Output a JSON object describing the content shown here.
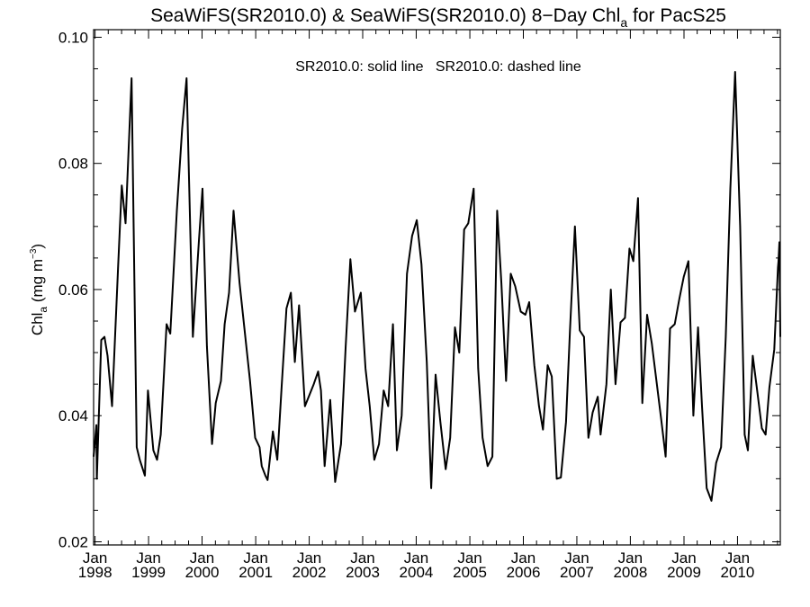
{
  "chart_data": {
    "type": "line",
    "title": "SeaWiFS(SR2010.0) & SeaWiFS(SR2010.0) 8−Day Chl",
    "title_sub": "a",
    "title_tail": " for PacS25",
    "annotation": "SR2010.0: solid line   SR2010.0: dashed line",
    "ylabel": "Chl",
    "ylabel_sub": "a",
    "ylabel_units": " (mg m",
    "ylabel_sup": "−3",
    "ylabel_close": ")",
    "ylim": [
      0.0195,
      0.1012
    ],
    "xlim": [
      "1997-12-22",
      "2010-10-20"
    ],
    "yticks": [
      0.02,
      0.04,
      0.06,
      0.08,
      0.1
    ],
    "ytick_labels": [
      "0.02",
      "0.04",
      "0.06",
      "0.08",
      "0.10"
    ],
    "xticks": [
      {
        "date": "1998-01-01",
        "month": "Jan",
        "year": "1998"
      },
      {
        "date": "1999-01-01",
        "month": "Jan",
        "year": "1999"
      },
      {
        "date": "2000-01-01",
        "month": "Jan",
        "year": "2000"
      },
      {
        "date": "2001-01-01",
        "month": "Jan",
        "year": "2001"
      },
      {
        "date": "2002-01-01",
        "month": "Jan",
        "year": "2002"
      },
      {
        "date": "2003-01-01",
        "month": "Jan",
        "year": "2003"
      },
      {
        "date": "2004-01-01",
        "month": "Jan",
        "year": "2004"
      },
      {
        "date": "2005-01-01",
        "month": "Jan",
        "year": "2005"
      },
      {
        "date": "2006-01-01",
        "month": "Jan",
        "year": "2006"
      },
      {
        "date": "2007-01-01",
        "month": "Jan",
        "year": "2007"
      },
      {
        "date": "2008-01-01",
        "month": "Jan",
        "year": "2008"
      },
      {
        "date": "2009-01-01",
        "month": "Jan",
        "year": "2009"
      },
      {
        "date": "2010-01-01",
        "month": "Jan",
        "year": "2010"
      }
    ],
    "grid": false,
    "series": [
      {
        "style": "solid",
        "color": "#000000",
        "points": [
          [
            "1997-12-22",
            0.0335
          ],
          [
            "1998-01-10",
            0.0385
          ],
          [
            "1998-01-13",
            0.03
          ],
          [
            "1998-02-12",
            0.052
          ],
          [
            "1998-03-06",
            0.0525
          ],
          [
            "1998-03-27",
            0.0495
          ],
          [
            "1998-04-27",
            0.0415
          ],
          [
            "1998-06-07",
            0.0635
          ],
          [
            "1998-07-02",
            0.0765
          ],
          [
            "1998-07-28",
            0.0705
          ],
          [
            "1998-09-07",
            0.0935
          ],
          [
            "1998-10-12",
            0.035
          ],
          [
            "1998-11-02",
            0.033
          ],
          [
            "1998-12-07",
            0.0305
          ],
          [
            "1998-12-28",
            0.044
          ],
          [
            "1999-02-03",
            0.0345
          ],
          [
            "1999-02-28",
            0.033
          ],
          [
            "1999-03-25",
            0.037
          ],
          [
            "1999-05-04",
            0.0545
          ],
          [
            "1999-05-29",
            0.053
          ],
          [
            "1999-07-13",
            0.0725
          ],
          [
            "1999-08-18",
            0.0855
          ],
          [
            "1999-09-17",
            0.0935
          ],
          [
            "1999-10-30",
            0.0525
          ],
          [
            "1999-12-10",
            0.0675
          ],
          [
            "2000-01-04",
            0.076
          ],
          [
            "2000-02-03",
            0.051
          ],
          [
            "2000-03-09",
            0.0355
          ],
          [
            "2000-04-03",
            0.042
          ],
          [
            "2000-05-09",
            0.0455
          ],
          [
            "2000-06-03",
            0.0545
          ],
          [
            "2000-07-03",
            0.0595
          ],
          [
            "2000-08-03",
            0.0725
          ],
          [
            "2000-09-13",
            0.061
          ],
          [
            "2000-11-23",
            0.0455
          ],
          [
            "2000-12-28",
            0.0365
          ],
          [
            "2001-01-27",
            0.035
          ],
          [
            "2001-02-11",
            0.032
          ],
          [
            "2001-03-08",
            0.0305
          ],
          [
            "2001-03-23",
            0.0298
          ],
          [
            "2001-04-28",
            0.0375
          ],
          [
            "2001-05-28",
            0.033
          ],
          [
            "2001-06-27",
            0.0445
          ],
          [
            "2001-07-30",
            0.057
          ],
          [
            "2001-08-29",
            0.0595
          ],
          [
            "2001-09-25",
            0.0485
          ],
          [
            "2001-10-24",
            0.0575
          ],
          [
            "2001-12-03",
            0.0415
          ],
          [
            "2002-02-01",
            0.045
          ],
          [
            "2002-03-03",
            0.047
          ],
          [
            "2002-03-22",
            0.044
          ],
          [
            "2002-04-16",
            0.032
          ],
          [
            "2002-05-24",
            0.0425
          ],
          [
            "2002-06-27",
            0.0295
          ],
          [
            "2002-08-06",
            0.0355
          ],
          [
            "2002-09-07",
            0.051
          ],
          [
            "2002-10-09",
            0.0648
          ],
          [
            "2002-11-09",
            0.0565
          ],
          [
            "2002-12-19",
            0.0595
          ],
          [
            "2003-01-20",
            0.0475
          ],
          [
            "2003-02-18",
            0.0415
          ],
          [
            "2003-03-21",
            0.033
          ],
          [
            "2003-04-22",
            0.0355
          ],
          [
            "2003-05-24",
            0.044
          ],
          [
            "2003-06-24",
            0.0415
          ],
          [
            "2003-07-26",
            0.0545
          ],
          [
            "2003-08-22",
            0.0345
          ],
          [
            "2003-09-24",
            0.04
          ],
          [
            "2003-10-30",
            0.0625
          ],
          [
            "2003-12-04",
            0.0685
          ],
          [
            "2004-01-05",
            0.071
          ],
          [
            "2004-02-06",
            0.064
          ],
          [
            "2004-03-13",
            0.0485
          ],
          [
            "2004-04-12",
            0.0285
          ],
          [
            "2004-05-12",
            0.0465
          ],
          [
            "2004-06-14",
            0.039
          ],
          [
            "2004-07-20",
            0.0315
          ],
          [
            "2004-08-20",
            0.0365
          ],
          [
            "2004-09-21",
            0.054
          ],
          [
            "2004-10-21",
            0.05
          ],
          [
            "2004-11-23",
            0.0695
          ],
          [
            "2004-12-21",
            0.0705
          ],
          [
            "2005-01-27",
            0.076
          ],
          [
            "2005-02-27",
            0.0475
          ],
          [
            "2005-03-29",
            0.0365
          ],
          [
            "2005-05-02",
            0.032
          ],
          [
            "2005-06-04",
            0.0335
          ],
          [
            "2005-07-06",
            0.0725
          ],
          [
            "2005-08-04",
            0.061
          ],
          [
            "2005-09-05",
            0.0455
          ],
          [
            "2005-10-07",
            0.0625
          ],
          [
            "2005-11-07",
            0.0605
          ],
          [
            "2005-12-14",
            0.0565
          ],
          [
            "2006-01-15",
            0.056
          ],
          [
            "2006-02-10",
            0.058
          ],
          [
            "2006-03-17",
            0.048
          ],
          [
            "2006-04-18",
            0.0415
          ],
          [
            "2006-05-15",
            0.0378
          ],
          [
            "2006-06-16",
            0.048
          ],
          [
            "2006-07-14",
            0.0462
          ],
          [
            "2006-08-17",
            0.03
          ],
          [
            "2006-09-14",
            0.0302
          ],
          [
            "2006-10-19",
            0.039
          ],
          [
            "2006-11-15",
            0.0535
          ],
          [
            "2006-12-19",
            0.07
          ],
          [
            "2007-01-21",
            0.0535
          ],
          [
            "2007-02-19",
            0.0525
          ],
          [
            "2007-03-21",
            0.0365
          ],
          [
            "2007-04-19",
            0.0405
          ],
          [
            "2007-05-24",
            0.043
          ],
          [
            "2007-06-12",
            0.037
          ],
          [
            "2007-07-22",
            0.045
          ],
          [
            "2007-08-21",
            0.06
          ],
          [
            "2007-09-22",
            0.045
          ],
          [
            "2007-10-26",
            0.0548
          ],
          [
            "2007-11-25",
            0.0555
          ],
          [
            "2007-12-26",
            0.0665
          ],
          [
            "2008-01-21",
            0.0645
          ],
          [
            "2008-02-22",
            0.0745
          ],
          [
            "2008-03-23",
            0.042
          ],
          [
            "2008-04-24",
            0.056
          ],
          [
            "2008-05-26",
            0.0515
          ],
          [
            "2008-06-27",
            0.0455
          ],
          [
            "2008-07-29",
            0.0395
          ],
          [
            "2008-08-29",
            0.0335
          ],
          [
            "2008-09-28",
            0.0538
          ],
          [
            "2008-10-30",
            0.0545
          ],
          [
            "2008-11-30",
            0.0585
          ],
          [
            "2008-12-30",
            0.062
          ],
          [
            "2009-01-31",
            0.0645
          ],
          [
            "2009-03-06",
            0.04
          ],
          [
            "2009-04-07",
            0.054
          ],
          [
            "2009-05-04",
            0.0415
          ],
          [
            "2009-06-05",
            0.0285
          ],
          [
            "2009-07-07",
            0.0265
          ],
          [
            "2009-08-08",
            0.0325
          ],
          [
            "2009-09-11",
            0.035
          ],
          [
            "2009-10-13",
            0.0525
          ],
          [
            "2009-11-13",
            0.076
          ],
          [
            "2009-12-16",
            0.0945
          ],
          [
            "2010-01-19",
            0.07
          ],
          [
            "2010-02-19",
            0.037
          ],
          [
            "2010-03-13",
            0.0345
          ],
          [
            "2010-04-15",
            0.0495
          ],
          [
            "2010-05-15",
            0.044
          ],
          [
            "2010-06-16",
            0.038
          ],
          [
            "2010-07-12",
            0.037
          ],
          [
            "2010-08-07",
            0.0445
          ],
          [
            "2010-09-09",
            0.0505
          ],
          [
            "2010-10-04",
            0.0635
          ],
          [
            "2010-10-08",
            0.0645
          ],
          [
            "2010-10-14",
            0.0675
          ],
          [
            "2010-10-20",
            0.0525
          ]
        ]
      }
    ]
  }
}
